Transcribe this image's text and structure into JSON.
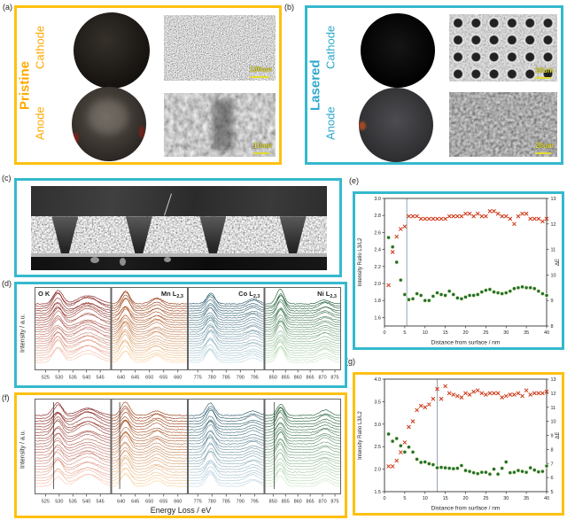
{
  "colors": {
    "panel_yellow": "#FFC010",
    "panel_teal": "#35B9CE",
    "label_orange": "#FFA900",
    "label_teal": "#2CA9CC",
    "marker_red": "#CC3311",
    "marker_green": "#226B3A",
    "marker_green_halo": "#E8F4B8",
    "scalebar_yellow": "#E4DC2E",
    "spectra_palettes": [
      [
        "#7A1410",
        "#F9C5B0"
      ],
      [
        "#8C2D04",
        "#FDD49E"
      ],
      [
        "#1D4E5F",
        "#BFD9E4"
      ],
      [
        "#14532D",
        "#C9E8C3"
      ]
    ]
  },
  "panels": {
    "a": {
      "tag": "(a)",
      "group": "Pristine",
      "rows": [
        "Cathode",
        "Anode"
      ],
      "scalebars": [
        "100um",
        "10um"
      ]
    },
    "b": {
      "tag": "(b)",
      "group": "Lasered",
      "rows": [
        "Cathode",
        "Anode"
      ],
      "scalebars": [
        "20um",
        "20um"
      ]
    },
    "c": {
      "tag": "(c)"
    },
    "d": {
      "tag": "(d)",
      "ylabel": "Intensity / a.u."
    },
    "e": {
      "tag": "(e)"
    },
    "f": {
      "tag": "(f)",
      "ylabel": "Intensity / a.u.",
      "xlabel": "Energy Loss / eV"
    },
    "g": {
      "tag": "(g)"
    }
  },
  "chart_data": [
    {
      "panel": "d",
      "type": "line",
      "variant": "eels-waterfall",
      "ylabel": "Intensity / a.u.",
      "n_traces": 26,
      "show_edge_labels": true,
      "edges": [
        {
          "label": "O K",
          "subscript": "",
          "range": [
            521,
            549
          ],
          "ticks": [
            525,
            530,
            535,
            540,
            545
          ],
          "peaks": [
            {
              "c": 529.5,
              "w": 1.7,
              "h": 1.0
            },
            {
              "c": 540.5,
              "w": 3.6,
              "h": 0.8
            }
          ],
          "refline": null
        },
        {
          "label": "Mn L",
          "subscript": "2,3",
          "range": [
            636.5,
            663.5
          ],
          "ticks": [
            640,
            645,
            650,
            655,
            660
          ],
          "peaks": [
            {
              "c": 641.5,
              "w": 1.5,
              "h": 1.0
            },
            {
              "c": 652.5,
              "w": 2.0,
              "h": 0.5
            }
          ],
          "refline": null
        },
        {
          "label": "Co L",
          "subscript": "2,3",
          "range": [
            771.5,
            798.5
          ],
          "ticks": [
            775,
            780,
            785,
            790,
            795
          ],
          "peaks": [
            {
              "c": 779.5,
              "w": 1.5,
              "h": 1.0
            },
            {
              "c": 794.5,
              "w": 2.0,
              "h": 0.4
            }
          ],
          "refline": null
        },
        {
          "label": "Ni L",
          "subscript": "2,3",
          "range": [
            846.5,
            877.5
          ],
          "ticks": [
            850,
            855,
            860,
            865,
            870,
            875
          ],
          "peaks": [
            {
              "c": 853,
              "w": 1.5,
              "h": 1.0
            },
            {
              "c": 871,
              "w": 2.2,
              "h": 0.42
            }
          ],
          "refline": null
        }
      ]
    },
    {
      "panel": "e",
      "type": "scatter",
      "xlabel": "Distance from surface / nm",
      "ylabel_left": "Intensity Ratio L3/L2",
      "ylabel_right": "ΔE",
      "xlim": [
        0,
        40
      ],
      "xticks": [
        0,
        5,
        10,
        15,
        20,
        25,
        30,
        35,
        40
      ],
      "ylim_left": [
        1.5,
        3.0
      ],
      "yticks_left": [
        1.6,
        1.8,
        2.0,
        2.2,
        2.4,
        2.6,
        2.8,
        3.0
      ],
      "ylim_right": [
        8,
        13
      ],
      "yticks_right": [
        8,
        9,
        10,
        11,
        12,
        13
      ],
      "marker_line_x": 5.5,
      "x": [
        1,
        2,
        3,
        4,
        5,
        6,
        7,
        8,
        9,
        10,
        11,
        12,
        13,
        14,
        15,
        16,
        17,
        18,
        19,
        20,
        21,
        22,
        23,
        24,
        25,
        26,
        27,
        28,
        29,
        30,
        31,
        32,
        33,
        34,
        35,
        36,
        37,
        38,
        39,
        40
      ],
      "series": [
        {
          "name": "Intensity ratio L3/L2",
          "marker": "circle",
          "axis": "left",
          "values": [
            2.54,
            2.43,
            2.25,
            2.04,
            1.87,
            1.81,
            1.82,
            1.88,
            1.86,
            1.8,
            1.8,
            1.85,
            1.89,
            1.87,
            1.86,
            1.91,
            1.87,
            1.83,
            1.82,
            1.84,
            1.86,
            1.86,
            1.87,
            1.9,
            1.92,
            1.93,
            1.9,
            1.89,
            1.88,
            1.89,
            1.91,
            1.94,
            1.95,
            1.96,
            1.95,
            1.95,
            1.94,
            1.91,
            1.88,
            1.86
          ]
        },
        {
          "name": "ΔE",
          "marker": "x",
          "axis": "right",
          "values": [
            9.6,
            10.9,
            11.5,
            11.8,
            11.9,
            12.3,
            12.3,
            12.3,
            12.2,
            12.2,
            12.2,
            12.2,
            12.2,
            12.2,
            12.2,
            12.3,
            12.3,
            12.3,
            12.3,
            12.4,
            12.4,
            12.3,
            12.4,
            12.3,
            12.3,
            12.5,
            12.5,
            12.4,
            12.3,
            12.3,
            12.2,
            12.0,
            12.3,
            12.4,
            12.4,
            12.2,
            12.2,
            12.2,
            12.1,
            12.2
          ]
        }
      ]
    },
    {
      "panel": "f",
      "type": "line",
      "variant": "eels-waterfall",
      "ylabel": "Intensity / a.u.",
      "xlabel": "Energy Loss / eV",
      "n_traces": 26,
      "show_edge_labels": false,
      "edges": [
        {
          "label": "O K",
          "subscript": "",
          "range": [
            521,
            549
          ],
          "ticks": [
            525,
            530,
            535,
            540,
            545
          ],
          "peaks": [
            {
              "c": 529.5,
              "w": 1.7,
              "h": 1.0
            },
            {
              "c": 540.5,
              "w": 3.6,
              "h": 0.8
            }
          ],
          "refline": 528
        },
        {
          "label": "Mn L",
          "subscript": "2,3",
          "range": [
            636.5,
            663.5
          ],
          "ticks": [
            640,
            645,
            650,
            655,
            660
          ],
          "peaks": [
            {
              "c": 641.5,
              "w": 1.5,
              "h": 1.0
            },
            {
              "c": 652.5,
              "w": 2.0,
              "h": 0.5
            }
          ],
          "refline": 639.5
        },
        {
          "label": "Co L",
          "subscript": "2,3",
          "range": [
            771.5,
            798.5
          ],
          "ticks": [
            775,
            780,
            785,
            790,
            795
          ],
          "peaks": [
            {
              "c": 779.5,
              "w": 1.5,
              "h": 1.0
            },
            {
              "c": 794.5,
              "w": 2.0,
              "h": 0.4
            }
          ],
          "refline": null
        },
        {
          "label": "Ni L",
          "subscript": "2,3",
          "range": [
            846.5,
            877.5
          ],
          "ticks": [
            850,
            855,
            860,
            865,
            870,
            875
          ],
          "peaks": [
            {
              "c": 853,
              "w": 1.5,
              "h": 1.0
            },
            {
              "c": 871,
              "w": 2.2,
              "h": 0.42
            }
          ],
          "refline": 850.5
        }
      ]
    },
    {
      "panel": "g",
      "type": "scatter",
      "xlabel": "Distance from surface / nm",
      "ylabel_left": "Intensity Ratio L3/L2",
      "ylabel_right": "ΔE",
      "xlim": [
        0,
        40
      ],
      "xticks": [
        0,
        5,
        10,
        15,
        20,
        25,
        30,
        35,
        40
      ],
      "ylim_left": [
        1.5,
        4.0
      ],
      "yticks_left": [
        1.5,
        2.0,
        2.5,
        3.0,
        3.5,
        4.0
      ],
      "ylim_right": [
        5,
        13
      ],
      "yticks_right": [
        5,
        6,
        7,
        8,
        9,
        10,
        11,
        12,
        13
      ],
      "marker_line_x": 13,
      "x": [
        1,
        2,
        3,
        4,
        5,
        6,
        7,
        8,
        9,
        10,
        11,
        12,
        13,
        14,
        15,
        16,
        17,
        18,
        19,
        20,
        21,
        22,
        23,
        24,
        25,
        26,
        27,
        28,
        29,
        30,
        31,
        32,
        33,
        34,
        35,
        36,
        37,
        38,
        39,
        40
      ],
      "series": [
        {
          "name": "Intensity ratio L3/L2",
          "marker": "circle",
          "axis": "left",
          "values": [
            2.78,
            2.62,
            2.68,
            2.52,
            2.38,
            2.49,
            2.38,
            2.22,
            2.15,
            2.16,
            2.12,
            2.1,
            2.03,
            2.04,
            2.03,
            2.02,
            2.01,
            2.02,
            2.08,
            1.97,
            1.95,
            1.92,
            1.9,
            1.93,
            1.93,
            1.89,
            2.0,
            1.89,
            2.02,
            2.16,
            1.92,
            1.93,
            1.97,
            1.95,
            1.93,
            2.03,
            1.98,
            1.94,
            1.95,
            2.07
          ]
        },
        {
          "name": "ΔE",
          "marker": "x",
          "axis": "right",
          "values": [
            6.8,
            6.8,
            7.2,
            7.8,
            8.5,
            9.6,
            10.0,
            10.8,
            11.1,
            11.0,
            11.2,
            11.6,
            12.3,
            11.6,
            12.5,
            12.0,
            11.9,
            11.8,
            11.7,
            12.0,
            11.9,
            12.1,
            12.2,
            12.0,
            11.9,
            12.0,
            12.0,
            12.0,
            11.7,
            11.8,
            11.9,
            11.9,
            12.0,
            11.8,
            12.2,
            11.9,
            12.0,
            12.0,
            12.0,
            12.1
          ]
        }
      ]
    }
  ]
}
